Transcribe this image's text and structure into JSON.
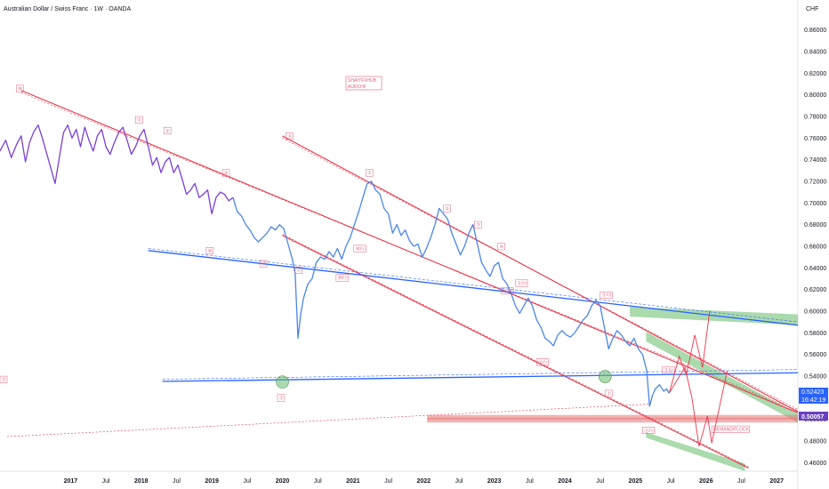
{
  "header": {
    "title": "Australian Dollar / Swiss Franc · 1W · OANDA",
    "currency": "CHF"
  },
  "watermark": {
    "line1": "SHAIYFXHUB",
    "line2": "AUDCHF"
  },
  "price_tags": {
    "last": "0.52423",
    "countdown": "16:42:19",
    "level": "0.50057"
  },
  "colors": {
    "price_purple": "#7b3fd6",
    "price_blue": "#4a86e8",
    "channel_red": "#e8354a",
    "trend_blue": "#2962ff",
    "zone_green": "#66bb6a",
    "demand_pink": "#e57373",
    "tag_blue": "#2962ff",
    "tag_purple": "#6a3fc2"
  },
  "chart_data": {
    "type": "line",
    "title": "Australian Dollar / Swiss Franc · 1W · OANDA",
    "ylabel": "CHF",
    "xlim": [
      2016.0,
      2027.3
    ],
    "ylim": [
      0.452,
      0.872
    ],
    "yticks": [
      0.46,
      0.48,
      0.5,
      0.52,
      0.54,
      0.56,
      0.58,
      0.6,
      0.62,
      0.64,
      0.66,
      0.68,
      0.7,
      0.72,
      0.74,
      0.76,
      0.78,
      0.8,
      0.82,
      0.84,
      0.86
    ],
    "ytick_labels": [
      "0.46000",
      "0.48000",
      "0.50000",
      "0.52000",
      "0.54000",
      "0.56000",
      "0.58000",
      "0.60000",
      "0.62000",
      "0.64000",
      "0.66000",
      "0.68000",
      "0.70000",
      "0.72000",
      "0.74000",
      "0.76000",
      "0.78000",
      "0.80000",
      "0.82000",
      "0.84000",
      "0.86000"
    ],
    "xticks": [
      {
        "x": 2017.0,
        "label": "2017",
        "bold": true
      },
      {
        "x": 2017.5,
        "label": "Jul",
        "bold": false
      },
      {
        "x": 2018.0,
        "label": "2018",
        "bold": true
      },
      {
        "x": 2018.5,
        "label": "Jul",
        "bold": false
      },
      {
        "x": 2019.0,
        "label": "2019",
        "bold": true
      },
      {
        "x": 2019.5,
        "label": "Jul",
        "bold": false
      },
      {
        "x": 2020.0,
        "label": "2020",
        "bold": true
      },
      {
        "x": 2020.5,
        "label": "Jul",
        "bold": false
      },
      {
        "x": 2021.0,
        "label": "2021",
        "bold": true
      },
      {
        "x": 2021.5,
        "label": "Jul",
        "bold": false
      },
      {
        "x": 2022.0,
        "label": "2022",
        "bold": true
      },
      {
        "x": 2022.5,
        "label": "Jul",
        "bold": false
      },
      {
        "x": 2023.0,
        "label": "2023",
        "bold": true
      },
      {
        "x": 2023.5,
        "label": "Jul",
        "bold": false
      },
      {
        "x": 2024.0,
        "label": "2024",
        "bold": true
      },
      {
        "x": 2024.5,
        "label": "Jul",
        "bold": false
      },
      {
        "x": 2025.0,
        "label": "2025",
        "bold": true
      },
      {
        "x": 2025.5,
        "label": "Jul",
        "bold": false
      },
      {
        "x": 2026.0,
        "label": "2026",
        "bold": true
      },
      {
        "x": 2026.5,
        "label": "Jul",
        "bold": false
      },
      {
        "x": 2027.0,
        "label": "2027",
        "bold": true
      }
    ],
    "series": [
      {
        "points": [
          [
            2016.0,
            0.748
          ],
          [
            2016.08,
            0.758
          ],
          [
            2016.16,
            0.742
          ],
          [
            2016.24,
            0.755
          ],
          [
            2016.3,
            0.762
          ],
          [
            2016.36,
            0.738
          ],
          [
            2016.42,
            0.756
          ],
          [
            2016.48,
            0.766
          ],
          [
            2016.54,
            0.772
          ],
          [
            2016.6,
            0.76
          ],
          [
            2016.66,
            0.746
          ],
          [
            2016.72,
            0.732
          ],
          [
            2016.78,
            0.718
          ],
          [
            2016.84,
            0.742
          ],
          [
            2016.9,
            0.765
          ],
          [
            2016.96,
            0.772
          ],
          [
            2017.02,
            0.76
          ],
          [
            2017.08,
            0.768
          ],
          [
            2017.14,
            0.752
          ],
          [
            2017.2,
            0.77
          ],
          [
            2017.26,
            0.758
          ],
          [
            2017.32,
            0.748
          ],
          [
            2017.38,
            0.762
          ],
          [
            2017.44,
            0.768
          ],
          [
            2017.5,
            0.752
          ],
          [
            2017.56,
            0.745
          ],
          [
            2017.62,
            0.756
          ],
          [
            2017.68,
            0.765
          ],
          [
            2017.74,
            0.77
          ],
          [
            2017.8,
            0.758
          ],
          [
            2017.86,
            0.745
          ],
          [
            2017.92,
            0.752
          ],
          [
            2017.98,
            0.762
          ],
          [
            2018.04,
            0.768
          ],
          [
            2018.1,
            0.752
          ],
          [
            2018.16,
            0.735
          ],
          [
            2018.22,
            0.742
          ],
          [
            2018.28,
            0.728
          ],
          [
            2018.34,
            0.738
          ],
          [
            2018.4,
            0.742
          ],
          [
            2018.46,
            0.728
          ],
          [
            2018.52,
            0.735
          ],
          [
            2018.58,
            0.722
          ],
          [
            2018.64,
            0.708
          ],
          [
            2018.7,
            0.712
          ],
          [
            2018.76,
            0.718
          ],
          [
            2018.82,
            0.705
          ],
          [
            2018.88,
            0.708
          ],
          [
            2018.94,
            0.712
          ],
          [
            2019.0,
            0.69
          ],
          [
            2019.06,
            0.705
          ],
          [
            2019.12,
            0.71
          ],
          [
            2019.18,
            0.708
          ],
          [
            2019.24,
            0.702
          ],
          [
            2019.3,
            0.705
          ]
        ]
      },
      {
        "points": [
          [
            2019.3,
            0.705
          ],
          [
            2019.36,
            0.692
          ],
          [
            2019.42,
            0.688
          ],
          [
            2019.48,
            0.68
          ],
          [
            2019.54,
            0.675
          ],
          [
            2019.6,
            0.668
          ],
          [
            2019.66,
            0.664
          ],
          [
            2019.72,
            0.668
          ],
          [
            2019.78,
            0.672
          ],
          [
            2019.84,
            0.678
          ],
          [
            2019.9,
            0.675
          ],
          [
            2019.96,
            0.68
          ],
          [
            2020.02,
            0.676
          ],
          [
            2020.08,
            0.662
          ],
          [
            2020.14,
            0.648
          ],
          [
            2020.18,
            0.635
          ],
          [
            2020.22,
            0.575
          ],
          [
            2020.26,
            0.598
          ],
          [
            2020.3,
            0.612
          ],
          [
            2020.36,
            0.625
          ],
          [
            2020.42,
            0.63
          ],
          [
            2020.48,
            0.645
          ],
          [
            2020.54,
            0.65
          ],
          [
            2020.6,
            0.648
          ],
          [
            2020.66,
            0.655
          ],
          [
            2020.72,
            0.65
          ],
          [
            2020.78,
            0.658
          ],
          [
            2020.84,
            0.648
          ],
          [
            2020.9,
            0.66
          ],
          [
            2020.96,
            0.668
          ],
          [
            2021.02,
            0.68
          ],
          [
            2021.08,
            0.692
          ],
          [
            2021.14,
            0.705
          ],
          [
            2021.2,
            0.718
          ],
          [
            2021.26,
            0.72
          ],
          [
            2021.32,
            0.712
          ],
          [
            2021.38,
            0.708
          ],
          [
            2021.44,
            0.695
          ],
          [
            2021.5,
            0.69
          ],
          [
            2021.56,
            0.672
          ],
          [
            2021.62,
            0.68
          ],
          [
            2021.68,
            0.67
          ],
          [
            2021.74,
            0.675
          ],
          [
            2021.8,
            0.665
          ],
          [
            2021.86,
            0.66
          ],
          [
            2021.92,
            0.662
          ],
          [
            2021.98,
            0.65
          ],
          [
            2022.04,
            0.658
          ],
          [
            2022.1,
            0.668
          ],
          [
            2022.16,
            0.68
          ],
          [
            2022.22,
            0.695
          ],
          [
            2022.28,
            0.69
          ],
          [
            2022.34,
            0.685
          ],
          [
            2022.4,
            0.672
          ],
          [
            2022.46,
            0.662
          ],
          [
            2022.52,
            0.652
          ],
          [
            2022.58,
            0.66
          ],
          [
            2022.64,
            0.672
          ],
          [
            2022.7,
            0.68
          ],
          [
            2022.76,
            0.662
          ],
          [
            2022.82,
            0.645
          ],
          [
            2022.88,
            0.638
          ],
          [
            2022.94,
            0.632
          ],
          [
            2023.0,
            0.642
          ],
          [
            2023.06,
            0.645
          ],
          [
            2023.12,
            0.63
          ],
          [
            2023.18,
            0.625
          ],
          [
            2023.24,
            0.616
          ],
          [
            2023.3,
            0.605
          ],
          [
            2023.36,
            0.598
          ],
          [
            2023.42,
            0.605
          ],
          [
            2023.48,
            0.612
          ],
          [
            2023.54,
            0.605
          ],
          [
            2023.6,
            0.592
          ],
          [
            2023.66,
            0.585
          ],
          [
            2023.72,
            0.575
          ],
          [
            2023.78,
            0.572
          ],
          [
            2023.84,
            0.568
          ],
          [
            2023.9,
            0.578
          ],
          [
            2023.96,
            0.582
          ],
          [
            2024.02,
            0.578
          ],
          [
            2024.08,
            0.576
          ],
          [
            2024.14,
            0.58
          ],
          [
            2024.2,
            0.586
          ],
          [
            2024.26,
            0.592
          ],
          [
            2024.32,
            0.596
          ],
          [
            2024.38,
            0.605
          ],
          [
            2024.44,
            0.61
          ],
          [
            2024.5,
            0.605
          ],
          [
            2024.56,
            0.585
          ],
          [
            2024.62,
            0.565
          ],
          [
            2024.68,
            0.575
          ],
          [
            2024.74,
            0.582
          ],
          [
            2024.8,
            0.578
          ],
          [
            2024.86,
            0.572
          ],
          [
            2024.92,
            0.568
          ],
          [
            2024.98,
            0.575
          ],
          [
            2025.04,
            0.565
          ],
          [
            2025.1,
            0.56
          ],
          [
            2025.16,
            0.545
          ],
          [
            2025.2,
            0.512
          ],
          [
            2025.24,
            0.522
          ],
          [
            2025.28,
            0.528
          ],
          [
            2025.34,
            0.532
          ],
          [
            2025.4,
            0.526
          ],
          [
            2025.44,
            0.528
          ],
          [
            2025.48,
            0.524
          ]
        ]
      }
    ],
    "annotations": [
      {
        "text": "Ⓦ",
        "x": 2016.23,
        "y": 0.806
      },
      {
        "text": "①",
        "x": 2017.92,
        "y": 0.777
      },
      {
        "text": "②",
        "x": 2018.32,
        "y": 0.767
      },
      {
        "text": "③",
        "x": 2019.15,
        "y": 0.728
      },
      {
        "text": "Ⓧ",
        "x": 2020.05,
        "y": 0.762
      },
      {
        "text": "①",
        "x": 2021.18,
        "y": 0.728
      },
      {
        "text": "②",
        "x": 2022.28,
        "y": 0.695
      },
      {
        "text": "③",
        "x": 2022.72,
        "y": 0.68
      },
      {
        "text": "④",
        "x": 2023.05,
        "y": 0.66
      },
      {
        "text": "Ⓦ",
        "x": 2018.92,
        "y": 0.656
      },
      {
        "text": "Ⓨ",
        "x": 2019.68,
        "y": 0.644
      },
      {
        "text": "ⓧ",
        "x": 2020.18,
        "y": 0.638
      },
      {
        "text": "Ⓦ/ⓧ",
        "x": 2020.76,
        "y": 0.631
      },
      {
        "text": "Ⓦ/ⓧ",
        "x": 2021.01,
        "y": 0.658
      },
      {
        "text": "Ⓨ/Ⓥ",
        "x": 2023.1,
        "y": 0.619
      },
      {
        "text": "Ⓨ/Ⓥ",
        "x": 2023.3,
        "y": 0.626
      },
      {
        "text": "Ⓨ/Ⓥ",
        "x": 2024.5,
        "y": 0.615
      },
      {
        "text": "Ⓨ/ⓧ",
        "x": 2023.6,
        "y": 0.553
      },
      {
        "text": "Ⓨ/ⓧ",
        "x": 2025.38,
        "y": 0.546
      },
      {
        "text": "Ⓩ",
        "x": 2016.0,
        "y": 0.537
      },
      {
        "text": "Ⓩ",
        "x": 2019.93,
        "y": 0.52
      },
      {
        "text": "Ⓩ",
        "x": 2024.57,
        "y": 0.524
      },
      {
        "text": "Ⓨ/ⓧ",
        "x": 2025.1,
        "y": 0.49
      },
      {
        "text": "DEMAND/FLOCK",
        "x": 2026.08,
        "y": 0.491
      }
    ]
  }
}
